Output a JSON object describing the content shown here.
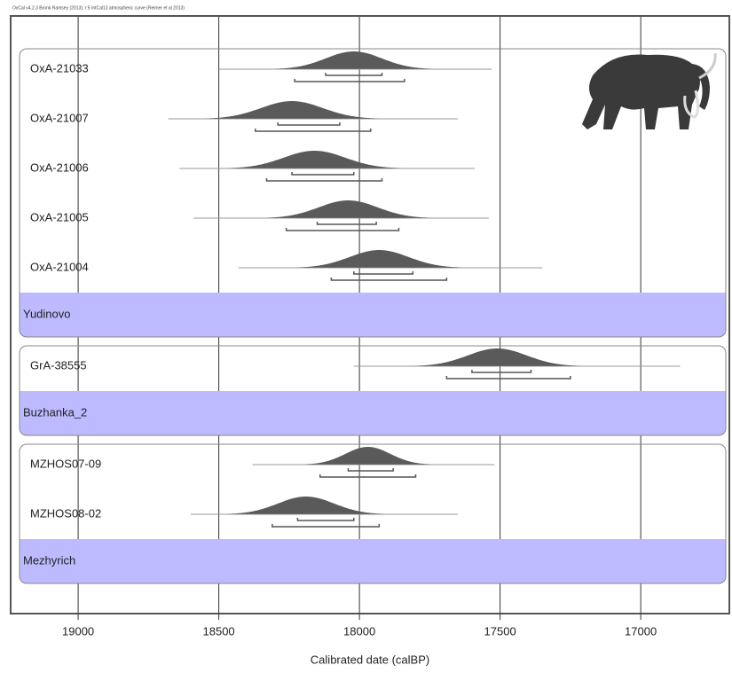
{
  "chart_data": {
    "type": "oxcal",
    "title": "OxCal v4.2.3 Bronk Ramsey (2013); r:5 IntCal13 atmospheric curve (Reimer et al 2013)",
    "xlabel": "Calibrated date (calBP)",
    "xlim": [
      19240,
      16685
    ],
    "xticks": [
      19000,
      18500,
      18000,
      17500,
      17000
    ],
    "grid": true,
    "curve_color": "#5a5a5a",
    "band_color": "#bdbaff",
    "groups": [
      {
        "name": "Yudinovo",
        "items": [
          {
            "label": "OxA-21033",
            "peak": 18020,
            "range68": [
              18120,
              17920
            ],
            "range95": [
              18230,
              17840
            ],
            "extent": [
              18500,
              17530
            ]
          },
          {
            "label": "OxA-21007",
            "peak": 18240,
            "range68": [
              18290,
              18070
            ],
            "range95": [
              18370,
              17960
            ],
            "extent": [
              18680,
              17650
            ]
          },
          {
            "label": "OxA-21006",
            "peak": 18160,
            "range68": [
              18240,
              18020
            ],
            "range95": [
              18330,
              17920
            ],
            "extent": [
              18640,
              17590
            ]
          },
          {
            "label": "OxA-21005",
            "peak": 18040,
            "range68": [
              18150,
              17940
            ],
            "range95": [
              18260,
              17860
            ],
            "extent": [
              18590,
              17540
            ]
          },
          {
            "label": "OxA-21004",
            "peak": 17930,
            "range68": [
              18020,
              17810
            ],
            "range95": [
              18100,
              17690
            ],
            "extent": [
              18430,
              17350
            ]
          }
        ]
      },
      {
        "name": "Buzhanka_2",
        "items": [
          {
            "label": "GrA-38555",
            "peak": 17510,
            "range68": [
              17600,
              17390
            ],
            "range95": [
              17690,
              17250
            ],
            "extent": [
              18020,
              16860
            ]
          }
        ]
      },
      {
        "name": "Mezhyrich",
        "items": [
          {
            "label": "MZHOS07-09",
            "peak": 17970,
            "range68": [
              18040,
              17880
            ],
            "range95": [
              18140,
              17800
            ],
            "extent": [
              18380,
              17520
            ]
          },
          {
            "label": "MZHOS08-02",
            "peak": 18190,
            "range68": [
              18220,
              18020
            ],
            "range95": [
              18310,
              17930
            ],
            "extent": [
              18600,
              17650
            ]
          }
        ]
      }
    ]
  }
}
